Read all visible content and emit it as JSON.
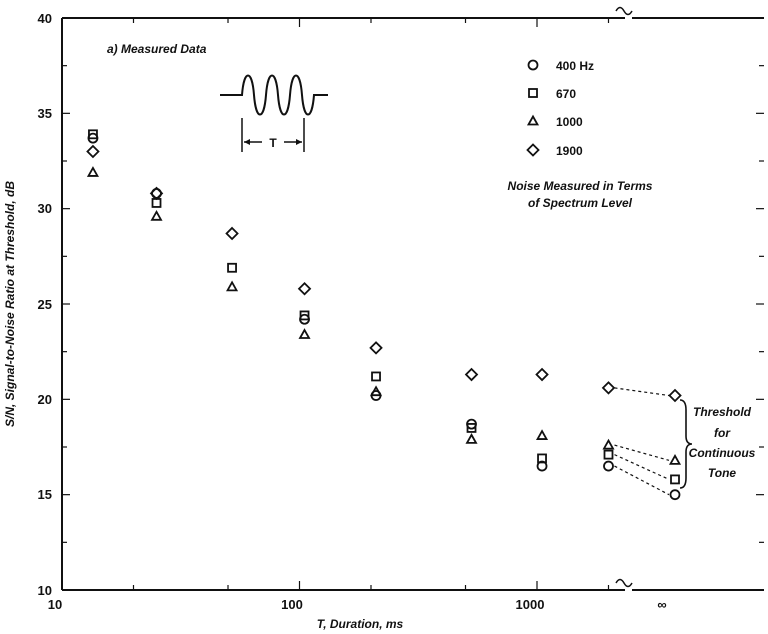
{
  "chart_data": {
    "type": "scatter",
    "title": "",
    "subtitle": "a) Measured Data",
    "xlabel": "T, Duration, ms",
    "ylabel": "S/N, Signal-to-Noise Ratio at Threshold, dB",
    "x_scale": "log",
    "xlim": [
      10,
      4000
    ],
    "ylim": [
      10,
      40
    ],
    "x_ticks": [
      "10",
      "100",
      "1000",
      "∞"
    ],
    "y_ticks": [
      "10",
      "15",
      "20",
      "25",
      "30",
      "35",
      "40"
    ],
    "legend_placement": "top-right",
    "series": [
      {
        "name": "400 Hz",
        "marker": "circle",
        "points": [
          [
            13.5,
            33.7
          ],
          [
            25,
            30.8
          ],
          [
            105,
            24.2
          ],
          [
            210,
            20.2
          ],
          [
            530,
            18.7
          ],
          [
            1050,
            16.5
          ],
          [
            2000,
            16.5
          ],
          [
            "∞",
            15.0
          ]
        ]
      },
      {
        "name": "670",
        "marker": "square",
        "points": [
          [
            13.5,
            33.9
          ],
          [
            25,
            30.3
          ],
          [
            52,
            26.9
          ],
          [
            105,
            24.4
          ],
          [
            210,
            21.2
          ],
          [
            530,
            18.5
          ],
          [
            1050,
            16.9
          ],
          [
            2000,
            17.1
          ],
          [
            "∞",
            15.8
          ]
        ]
      },
      {
        "name": "1000",
        "marker": "triangle",
        "points": [
          [
            13.5,
            31.9
          ],
          [
            25,
            29.6
          ],
          [
            52,
            25.9
          ],
          [
            105,
            23.4
          ],
          [
            210,
            20.4
          ],
          [
            530,
            17.9
          ],
          [
            1050,
            18.1
          ],
          [
            2000,
            17.6
          ],
          [
            "∞",
            16.8
          ]
        ]
      },
      {
        "name": "1900",
        "marker": "diamond",
        "points": [
          [
            13.5,
            33.0
          ],
          [
            25,
            30.8
          ],
          [
            52,
            28.7
          ],
          [
            105,
            25.8
          ],
          [
            210,
            22.7
          ],
          [
            530,
            21.3
          ],
          [
            1050,
            21.3
          ],
          [
            2000,
            20.6
          ],
          [
            "∞",
            20.2
          ]
        ]
      }
    ],
    "annotations": {
      "noise_note": [
        "Noise Measured in Terms",
        "of Spectrum Level"
      ],
      "threshold_note": [
        "Threshold",
        "for",
        "Continuous",
        "Tone"
      ],
      "waveform_label": "T"
    }
  }
}
